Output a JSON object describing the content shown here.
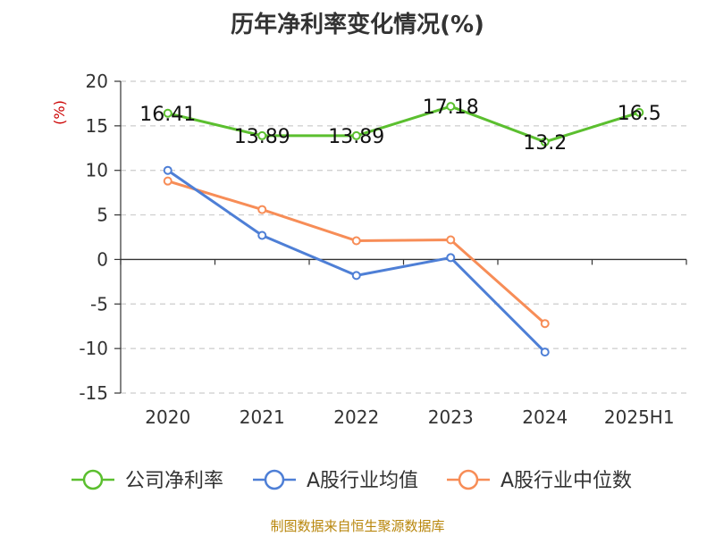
{
  "chart_data": {
    "type": "line",
    "title": "历年净利率变化情况(%)",
    "ylabel": "(%)",
    "xlabel": "",
    "categories": [
      "2020",
      "2021",
      "2022",
      "2023",
      "2024",
      "2025H1"
    ],
    "ylim": [
      -15,
      20
    ],
    "yticks": [
      20,
      15,
      10,
      5,
      0,
      -5,
      -10,
      -15
    ],
    "grid": true,
    "legend_position": "bottom",
    "series": [
      {
        "name": "公司净利率",
        "color": "#5bbf2f",
        "values": [
          16.41,
          13.89,
          13.89,
          17.18,
          13.2,
          16.5
        ],
        "labels": [
          "16.41",
          "13.89",
          "13.89",
          "17.18",
          "13.2",
          "16.5"
        ]
      },
      {
        "name": "A股行业均值",
        "color": "#4e7fd6",
        "values": [
          10.0,
          2.7,
          -1.8,
          0.2,
          -10.4,
          null
        ]
      },
      {
        "name": "A股行业中位数",
        "color": "#f78d57",
        "values": [
          8.8,
          5.6,
          2.1,
          2.2,
          -7.2,
          null
        ]
      }
    ],
    "footer": "制图数据来自恒生聚源数据库"
  }
}
